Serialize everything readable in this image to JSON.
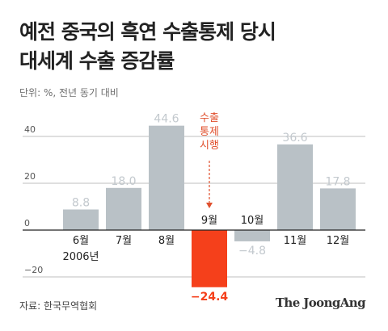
{
  "title_lines": [
    "예전 중국의 흑연 수출통제 당시",
    "대세계 수출 증감률"
  ],
  "unit_note": "단위: %, 전년 동기 대비",
  "annotation_lines": [
    "수출",
    "통제",
    "시행"
  ],
  "year_label": "2006년",
  "source": "자료: 한국무역협회",
  "brand": "The JoongAng",
  "colors": {
    "bar_default": "#b9c1c6",
    "bar_highlight": "#f5401b",
    "label_default": "#c3c9ce",
    "label_highlight": "#f5401b",
    "annotation": "#e0502e",
    "zero_line": "#222222",
    "grid": "#bfbfbf"
  },
  "chart_data": {
    "type": "bar",
    "categories": [
      "6월",
      "7월",
      "8월",
      "9월",
      "10월",
      "11월",
      "12월"
    ],
    "values": [
      8.8,
      18.0,
      44.6,
      -24.4,
      -4.8,
      36.6,
      17.8
    ],
    "value_labels": [
      "8.8",
      "18.0",
      "44.6",
      "−24.4",
      "−4.8",
      "36.6",
      "17.8"
    ],
    "highlight_index": 3,
    "yticks": [
      40,
      20,
      0,
      -20
    ],
    "ytick_labels": [
      "40",
      "20",
      "0",
      "−20"
    ],
    "ylim": [
      -30,
      60
    ],
    "grid": true,
    "title": "",
    "xlabel": "",
    "ylabel": ""
  }
}
